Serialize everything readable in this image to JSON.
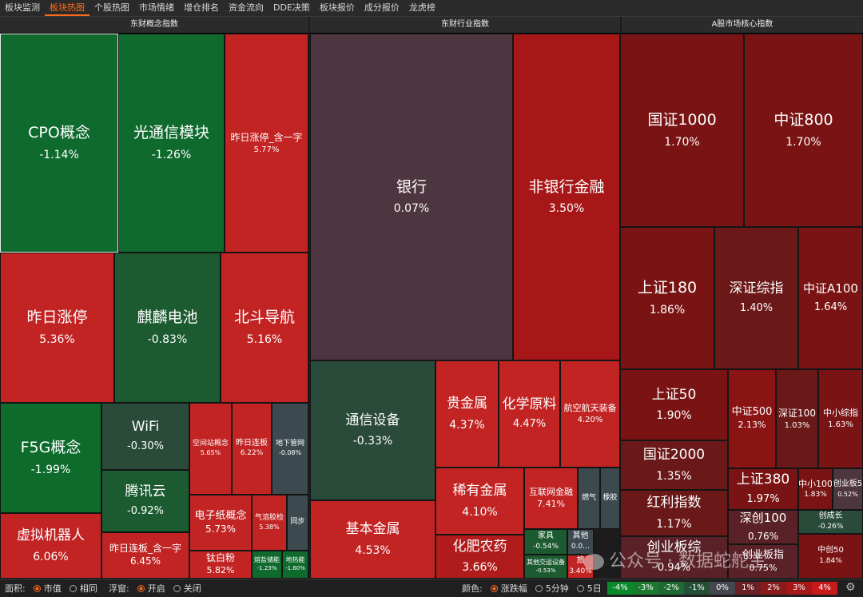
{
  "tabs": [
    {
      "label": "板块监测",
      "active": false
    },
    {
      "label": "板块热图",
      "active": true
    },
    {
      "label": "个股热图",
      "active": false
    },
    {
      "label": "市场情绪",
      "active": false
    },
    {
      "label": "增仓排名",
      "active": false
    },
    {
      "label": "资金流向",
      "active": false
    },
    {
      "label": "DDE决策",
      "active": false
    },
    {
      "label": "板块报价",
      "active": false
    },
    {
      "label": "成分报价",
      "active": false
    },
    {
      "label": "龙虎榜",
      "active": false
    }
  ],
  "panels": [
    {
      "title": "东财概念指数"
    },
    {
      "title": "东财行业指数"
    },
    {
      "title": "A股市场核心指数"
    }
  ],
  "concept_tiles": [
    {
      "name": "CPO概念",
      "pct": "-1.14%",
      "color": "#0f6a2e"
    },
    {
      "name": "光通信模块",
      "pct": "-1.26%",
      "color": "#0f6a2e"
    },
    {
      "name": "昨日涨停_含一字",
      "pct": "5.77%",
      "color": "#c22424"
    },
    {
      "name": "昨日涨停",
      "pct": "5.36%",
      "color": "#c22424"
    },
    {
      "name": "麒麟电池",
      "pct": "-0.83%",
      "color": "#1c5a30"
    },
    {
      "name": "北斗导航",
      "pct": "5.16%",
      "color": "#c22424"
    },
    {
      "name": "F5G概念",
      "pct": "-1.99%",
      "color": "#0d6b2b"
    },
    {
      "name": "WiFi",
      "pct": "-0.30%",
      "color": "#2a4a3a"
    },
    {
      "name": "空间站概念",
      "pct": "5.65%",
      "color": "#c22424"
    },
    {
      "name": "昨日连板",
      "pct": "6.22%",
      "color": "#c22424"
    },
    {
      "name": "地下管网",
      "pct": "-0.08%",
      "color": "#3c4a50"
    },
    {
      "name": "腾讯云",
      "pct": "-0.92%",
      "color": "#1c5a30"
    },
    {
      "name": "电子纸概念",
      "pct": "5.73%",
      "color": "#c22424"
    },
    {
      "name": "气溶胶检",
      "pct": "5.38%",
      "color": "#c22424"
    },
    {
      "name": "同步",
      "pct": "",
      "color": "#3c4a50"
    },
    {
      "name": "虚拟机器人",
      "pct": "6.06%",
      "color": "#c22424"
    },
    {
      "name": "昨日连板_含一字",
      "pct": "6.45%",
      "color": "#c22424"
    },
    {
      "name": "钛白粉",
      "pct": "5.82%",
      "color": "#c22424"
    },
    {
      "name": "熔盐储能",
      "pct": "-1.23%",
      "color": "#0f6a2e"
    },
    {
      "name": "地热能",
      "pct": "-1.60%",
      "color": "#0f6a2e"
    }
  ],
  "industry_tiles": [
    {
      "name": "银行",
      "pct": "0.07%",
      "color": "#4e3640"
    },
    {
      "name": "非银行金融",
      "pct": "3.50%",
      "color": "#a81717"
    },
    {
      "name": "通信设备",
      "pct": "-0.33%",
      "color": "#2a4a3a"
    },
    {
      "name": "贵金属",
      "pct": "4.37%",
      "color": "#c22424"
    },
    {
      "name": "化学原料",
      "pct": "4.47%",
      "color": "#c22424"
    },
    {
      "name": "航空航天装备",
      "pct": "4.20%",
      "color": "#c22424"
    },
    {
      "name": "稀有金属",
      "pct": "4.10%",
      "color": "#c22424"
    },
    {
      "name": "互联网金融",
      "pct": "7.41%",
      "color": "#c22424"
    },
    {
      "name": "燃气",
      "pct": "",
      "color": "#3c4a50"
    },
    {
      "name": "橡胶",
      "pct": "",
      "color": "#3c4a50"
    },
    {
      "name": "基本金属",
      "pct": "4.53%",
      "color": "#c22424"
    },
    {
      "name": "化肥农药",
      "pct": "3.66%",
      "color": "#b01c1c"
    },
    {
      "name": "家具",
      "pct": "-0.54%",
      "color": "#1c5a30"
    },
    {
      "name": "其他",
      "pct": "0.0…",
      "color": "#3c4a50"
    },
    {
      "name": "其他交运设备",
      "pct": "-0.53%",
      "color": "#1c5a30"
    },
    {
      "name": "旅",
      "pct": "3.40%",
      "color": "#c22424"
    }
  ],
  "core_tiles": [
    {
      "name": "国证1000",
      "pct": "1.70%",
      "color": "#7a1414"
    },
    {
      "name": "中证800",
      "pct": "1.70%",
      "color": "#7a1414"
    },
    {
      "name": "上证180",
      "pct": "1.86%",
      "color": "#7a1414"
    },
    {
      "name": "深证综指",
      "pct": "1.40%",
      "color": "#6a1818"
    },
    {
      "name": "中证A100",
      "pct": "1.64%",
      "color": "#7a1414"
    },
    {
      "name": "上证50",
      "pct": "1.90%",
      "color": "#7a1414"
    },
    {
      "name": "中证500",
      "pct": "2.13%",
      "color": "#8a1414"
    },
    {
      "name": "深证100",
      "pct": "1.03%",
      "color": "#6a1818"
    },
    {
      "name": "中小综指",
      "pct": "1.63%",
      "color": "#7a1414"
    },
    {
      "name": "国证2000",
      "pct": "1.35%",
      "color": "#6a1818"
    },
    {
      "name": "上证380",
      "pct": "1.97%",
      "color": "#7a1414"
    },
    {
      "name": "中小100",
      "pct": "1.83%",
      "color": "#7a1414"
    },
    {
      "name": "创业板5",
      "pct": "0.52%",
      "color": "#4e3640"
    },
    {
      "name": "红利指数",
      "pct": "1.17%",
      "color": "#6a1818"
    },
    {
      "name": "深创100",
      "pct": "0.76%",
      "color": "#5a2228"
    },
    {
      "name": "创成长",
      "pct": "-0.26%",
      "color": "#2a4a3a"
    },
    {
      "name": "创业板综",
      "pct": "0.94%",
      "color": "#5a2228"
    },
    {
      "name": "创业板指",
      "pct": "0.75%",
      "color": "#5a2228"
    },
    {
      "name": "中创50",
      "pct": "1.84%",
      "color": "#7a1414"
    }
  ],
  "bottom": {
    "area_label": "面积:",
    "area_options": [
      "市值",
      "相同"
    ],
    "float_label": "浮窗:",
    "float_options": [
      "开启",
      "关闭"
    ],
    "color_label": "颜色:",
    "color_options": [
      "涨跌幅",
      "5分钟",
      "5日"
    ],
    "legend": [
      {
        "label": "-4%",
        "color": "#0a8a2a"
      },
      {
        "label": "-3%",
        "color": "#1a7a30"
      },
      {
        "label": "-2%",
        "color": "#1f6a32"
      },
      {
        "label": "-1%",
        "color": "#244e36"
      },
      {
        "label": "0%",
        "color": "#44484e"
      },
      {
        "label": "1%",
        "color": "#6a2024"
      },
      {
        "label": "2%",
        "color": "#8a1a1a"
      },
      {
        "label": "3%",
        "color": "#a81717"
      },
      {
        "label": "4%",
        "color": "#c81a1a"
      }
    ]
  },
  "watermark": "公众号 · 数据蛇舵主"
}
